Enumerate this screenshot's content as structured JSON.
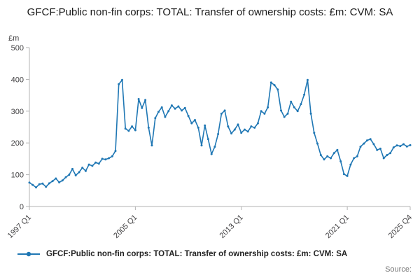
{
  "source_label": "Source:",
  "chart_data": {
    "type": "line",
    "title": "GFCF:Public non-fin corps: TOTAL: Transfer of ownership costs: £m: CVM: SA",
    "legend_label": "GFCF:Public non-fin corps: TOTAL: Transfer of ownership costs: £m: CVM: SA",
    "ylabel": "£m",
    "ylim": [
      0,
      500
    ],
    "y_ticks": [
      0,
      100,
      200,
      300,
      400,
      500
    ],
    "x_ticks": [
      {
        "label": "1997 Q1",
        "index": 0
      },
      {
        "label": "2005 Q1",
        "index": 32
      },
      {
        "label": "2013 Q1",
        "index": 64
      },
      {
        "label": "2021 Q1",
        "index": 96
      },
      {
        "label": "2025 Q4",
        "index": 115
      }
    ],
    "x_start": "1997 Q1",
    "x_end": "2025 Q4",
    "frequency": "quarterly",
    "line_color": "#1f77b4",
    "axis_color": "#b3b3b3",
    "tick_text_color": "#414042",
    "grid": false,
    "legend_position": "bottom-left",
    "values": [
      75,
      68,
      60,
      70,
      72,
      62,
      73,
      80,
      88,
      76,
      82,
      92,
      100,
      118,
      98,
      108,
      122,
      112,
      132,
      128,
      138,
      135,
      150,
      148,
      152,
      158,
      175,
      385,
      398,
      245,
      238,
      252,
      240,
      338,
      310,
      335,
      248,
      192,
      278,
      298,
      312,
      282,
      300,
      318,
      308,
      315,
      302,
      310,
      285,
      262,
      272,
      248,
      192,
      255,
      212,
      165,
      188,
      228,
      292,
      302,
      252,
      230,
      242,
      258,
      232,
      242,
      236,
      252,
      248,
      262,
      300,
      292,
      312,
      390,
      382,
      368,
      302,
      282,
      292,
      330,
      312,
      300,
      322,
      352,
      398,
      292,
      232,
      198,
      162,
      148,
      158,
      152,
      168,
      178,
      142,
      102,
      96,
      132,
      152,
      158,
      188,
      198,
      208,
      212,
      196,
      178,
      182,
      152,
      162,
      168,
      186,
      192,
      190,
      196,
      189,
      193
    ]
  }
}
